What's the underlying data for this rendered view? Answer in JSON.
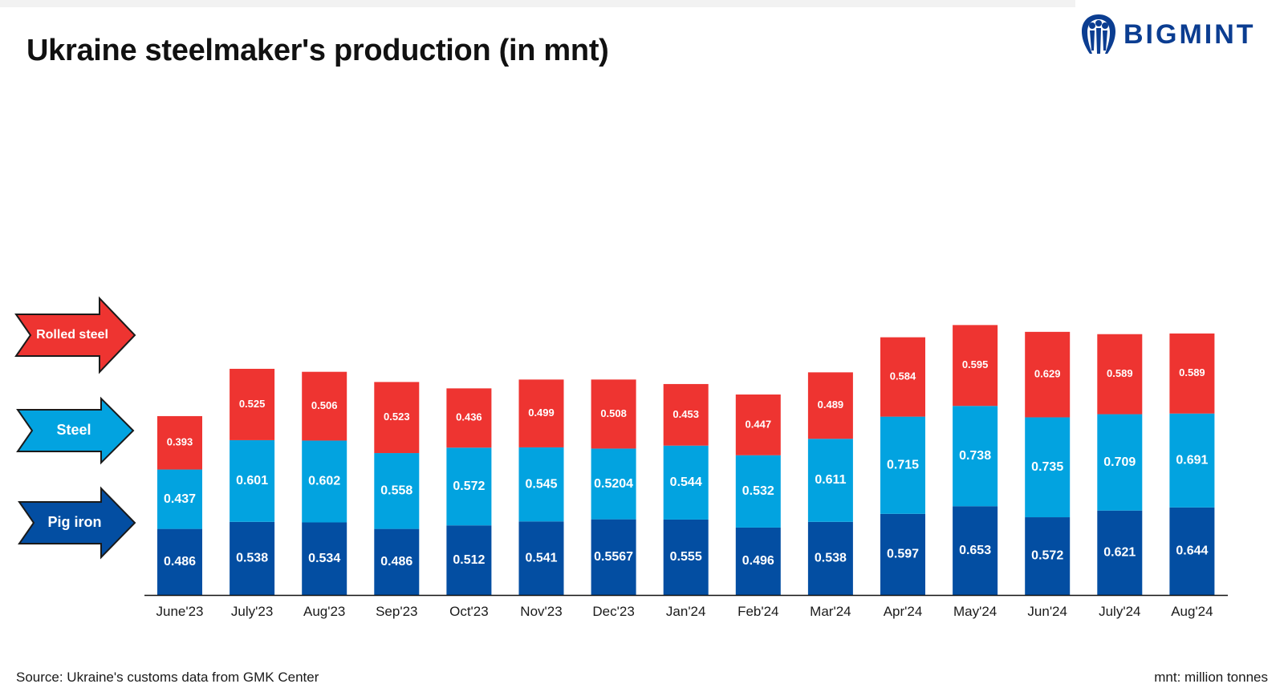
{
  "header": {
    "title": "Ukraine steelmaker's production (in mnt)",
    "brand": "BIGMINT"
  },
  "footer": {
    "source": "Source: Ukraine's customs data from GMK Center",
    "unit_note": "mnt: million tonnes"
  },
  "colors": {
    "pig_iron": "#034ea2",
    "steel": "#02a3e0",
    "rolled_steel": "#ee3431",
    "brand": "#0b3d91"
  },
  "chart_data": {
    "type": "bar",
    "stacked": true,
    "title": "Ukraine steelmaker's production (in mnt)",
    "xlabel": "",
    "ylabel": "",
    "categories": [
      "June'23",
      "July'23",
      "Aug'23",
      "Sep'23",
      "Oct'23",
      "Nov'23",
      "Dec'23",
      "Jan'24",
      "Feb'24",
      "Mar'24",
      "Apr'24",
      "May'24",
      "Jun'24",
      "July'24",
      "Aug'24"
    ],
    "series": [
      {
        "name": "Pig iron",
        "labels": [
          "0.486",
          "0.538",
          "0.534",
          "0.486",
          "0.512",
          "0.541",
          "0.5567",
          "0.555",
          "0.496",
          "0.538",
          "0.597",
          "0.653",
          "0.572",
          "0.621",
          "0.644"
        ],
        "values": [
          0.486,
          0.538,
          0.534,
          0.486,
          0.512,
          0.541,
          0.5567,
          0.555,
          0.496,
          0.538,
          0.597,
          0.653,
          0.572,
          0.621,
          0.644
        ]
      },
      {
        "name": "Steel",
        "labels": [
          "0.437",
          "0.601",
          "0.602",
          "0.558",
          "0.572",
          "0.545",
          "0.5204",
          "0.544",
          "0.532",
          "0.611",
          "0.715",
          "0.738",
          "0.735",
          "0.709",
          "0.691"
        ],
        "values": [
          0.437,
          0.601,
          0.602,
          0.558,
          0.572,
          0.545,
          0.5204,
          0.544,
          0.532,
          0.611,
          0.715,
          0.738,
          0.735,
          0.709,
          0.691
        ]
      },
      {
        "name": "Rolled steel",
        "labels": [
          "0.393",
          "0.525",
          "0.506",
          "0.523",
          "0.436",
          "0.499",
          "0.508",
          "0.453",
          "0.447",
          "0.489",
          "0.584",
          "0.595",
          "0.629",
          "0.589",
          "0.589"
        ],
        "values": [
          0.393,
          0.525,
          0.506,
          0.523,
          0.436,
          0.499,
          0.508,
          0.453,
          0.447,
          0.489,
          0.584,
          0.595,
          0.629,
          0.589,
          0.589
        ]
      }
    ],
    "legend": {
      "placement": "left",
      "items": [
        "Rolled steel",
        "Steel",
        "Pig iron"
      ]
    },
    "grid": false
  }
}
